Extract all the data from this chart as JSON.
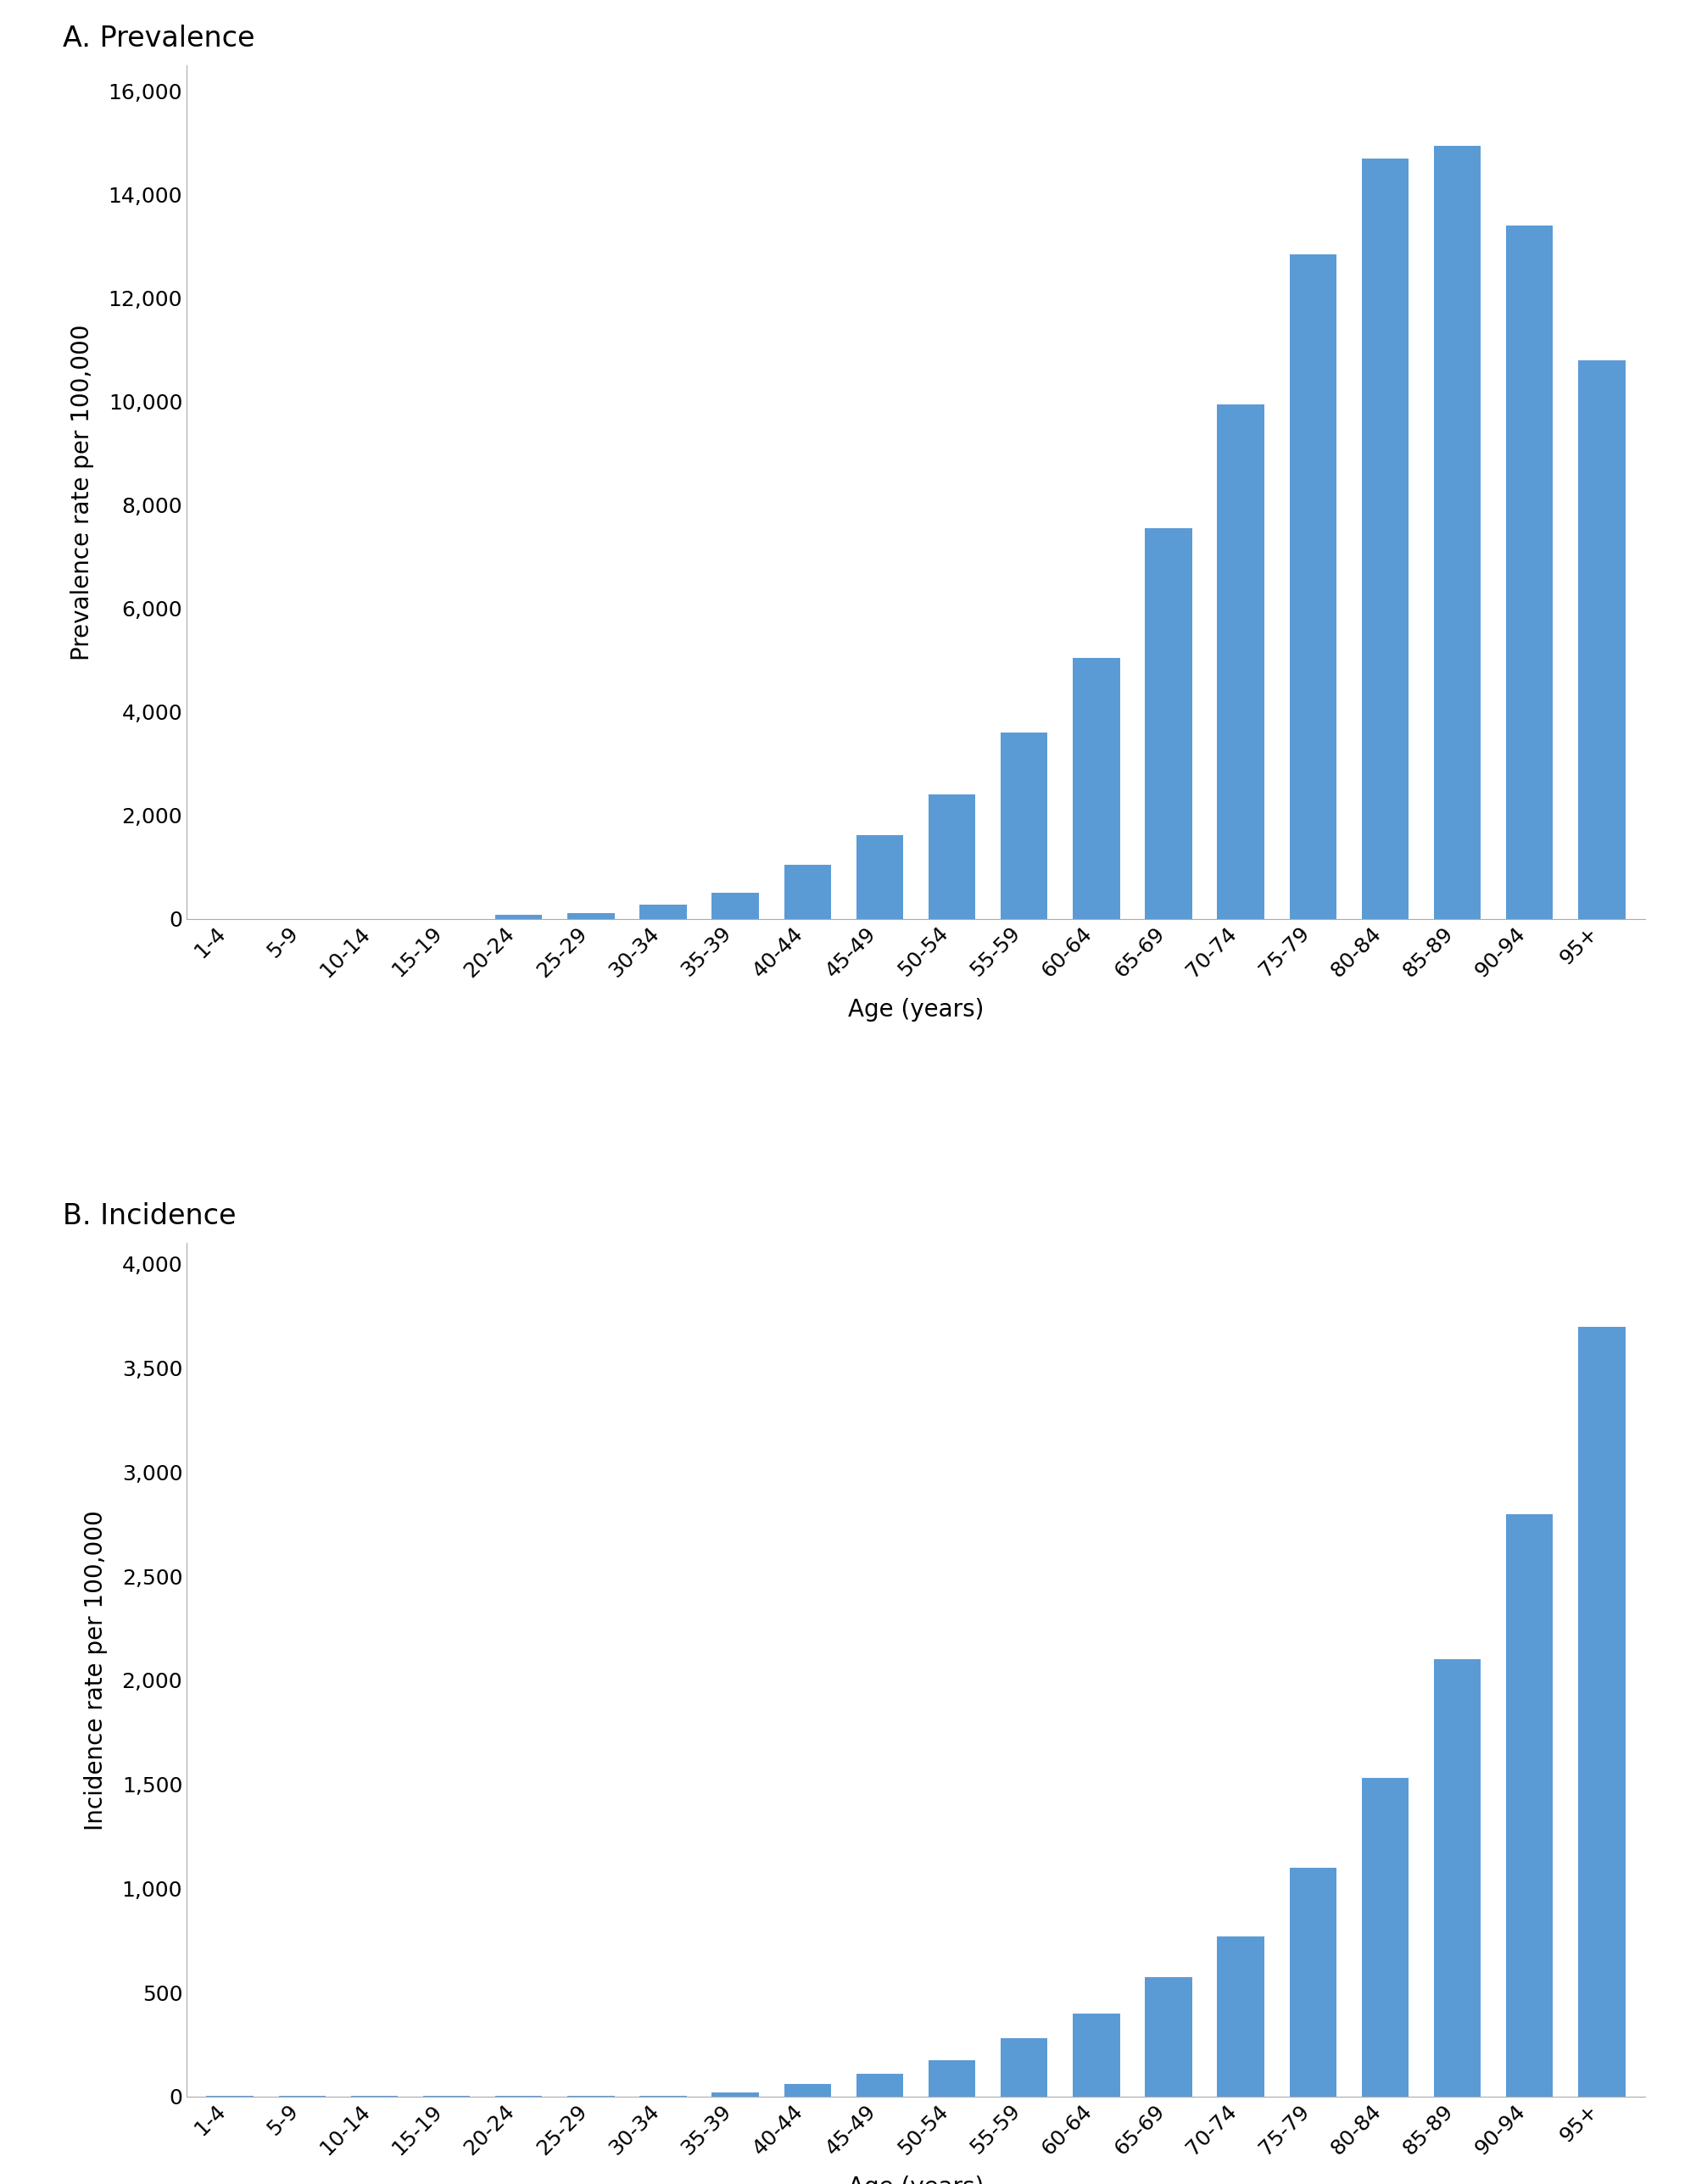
{
  "age_groups": [
    "1-4",
    "5-9",
    "10-14",
    "15-19",
    "20-24",
    "25-29",
    "30-34",
    "35-39",
    "40-44",
    "45-49",
    "50-54",
    "55-59",
    "60-64",
    "65-69",
    "70-74",
    "75-79",
    "80-84",
    "85-89",
    "90-94",
    "95+"
  ],
  "prevalence_values": [
    5,
    5,
    5,
    5,
    80,
    120,
    280,
    500,
    1050,
    1620,
    2400,
    3600,
    5050,
    7550,
    9950,
    12850,
    14700,
    14950,
    13400,
    10800
  ],
  "incidence_values": [
    2,
    2,
    2,
    2,
    3,
    4,
    5,
    20,
    60,
    110,
    175,
    280,
    400,
    575,
    770,
    1100,
    1530,
    2100,
    2800,
    3700
  ],
  "bar_color": "#5B9BD5",
  "prevalence_title": "A. Prevalence",
  "incidence_title": "B. Incidence",
  "prevalence_ylabel": "Prevalence rate per 100,000",
  "incidence_ylabel": "Incidence rate per 100,000",
  "xlabel": "Age (years)",
  "prevalence_ylim": [
    0,
    16500
  ],
  "incidence_ylim": [
    0,
    4100
  ],
  "prevalence_yticks": [
    0,
    2000,
    4000,
    6000,
    8000,
    10000,
    12000,
    14000,
    16000
  ],
  "incidence_yticks": [
    0,
    500,
    1000,
    1500,
    2000,
    2500,
    3000,
    3500,
    4000
  ],
  "background_color": "#ffffff",
  "title_fontsize": 24,
  "label_fontsize": 20,
  "tick_fontsize": 18
}
